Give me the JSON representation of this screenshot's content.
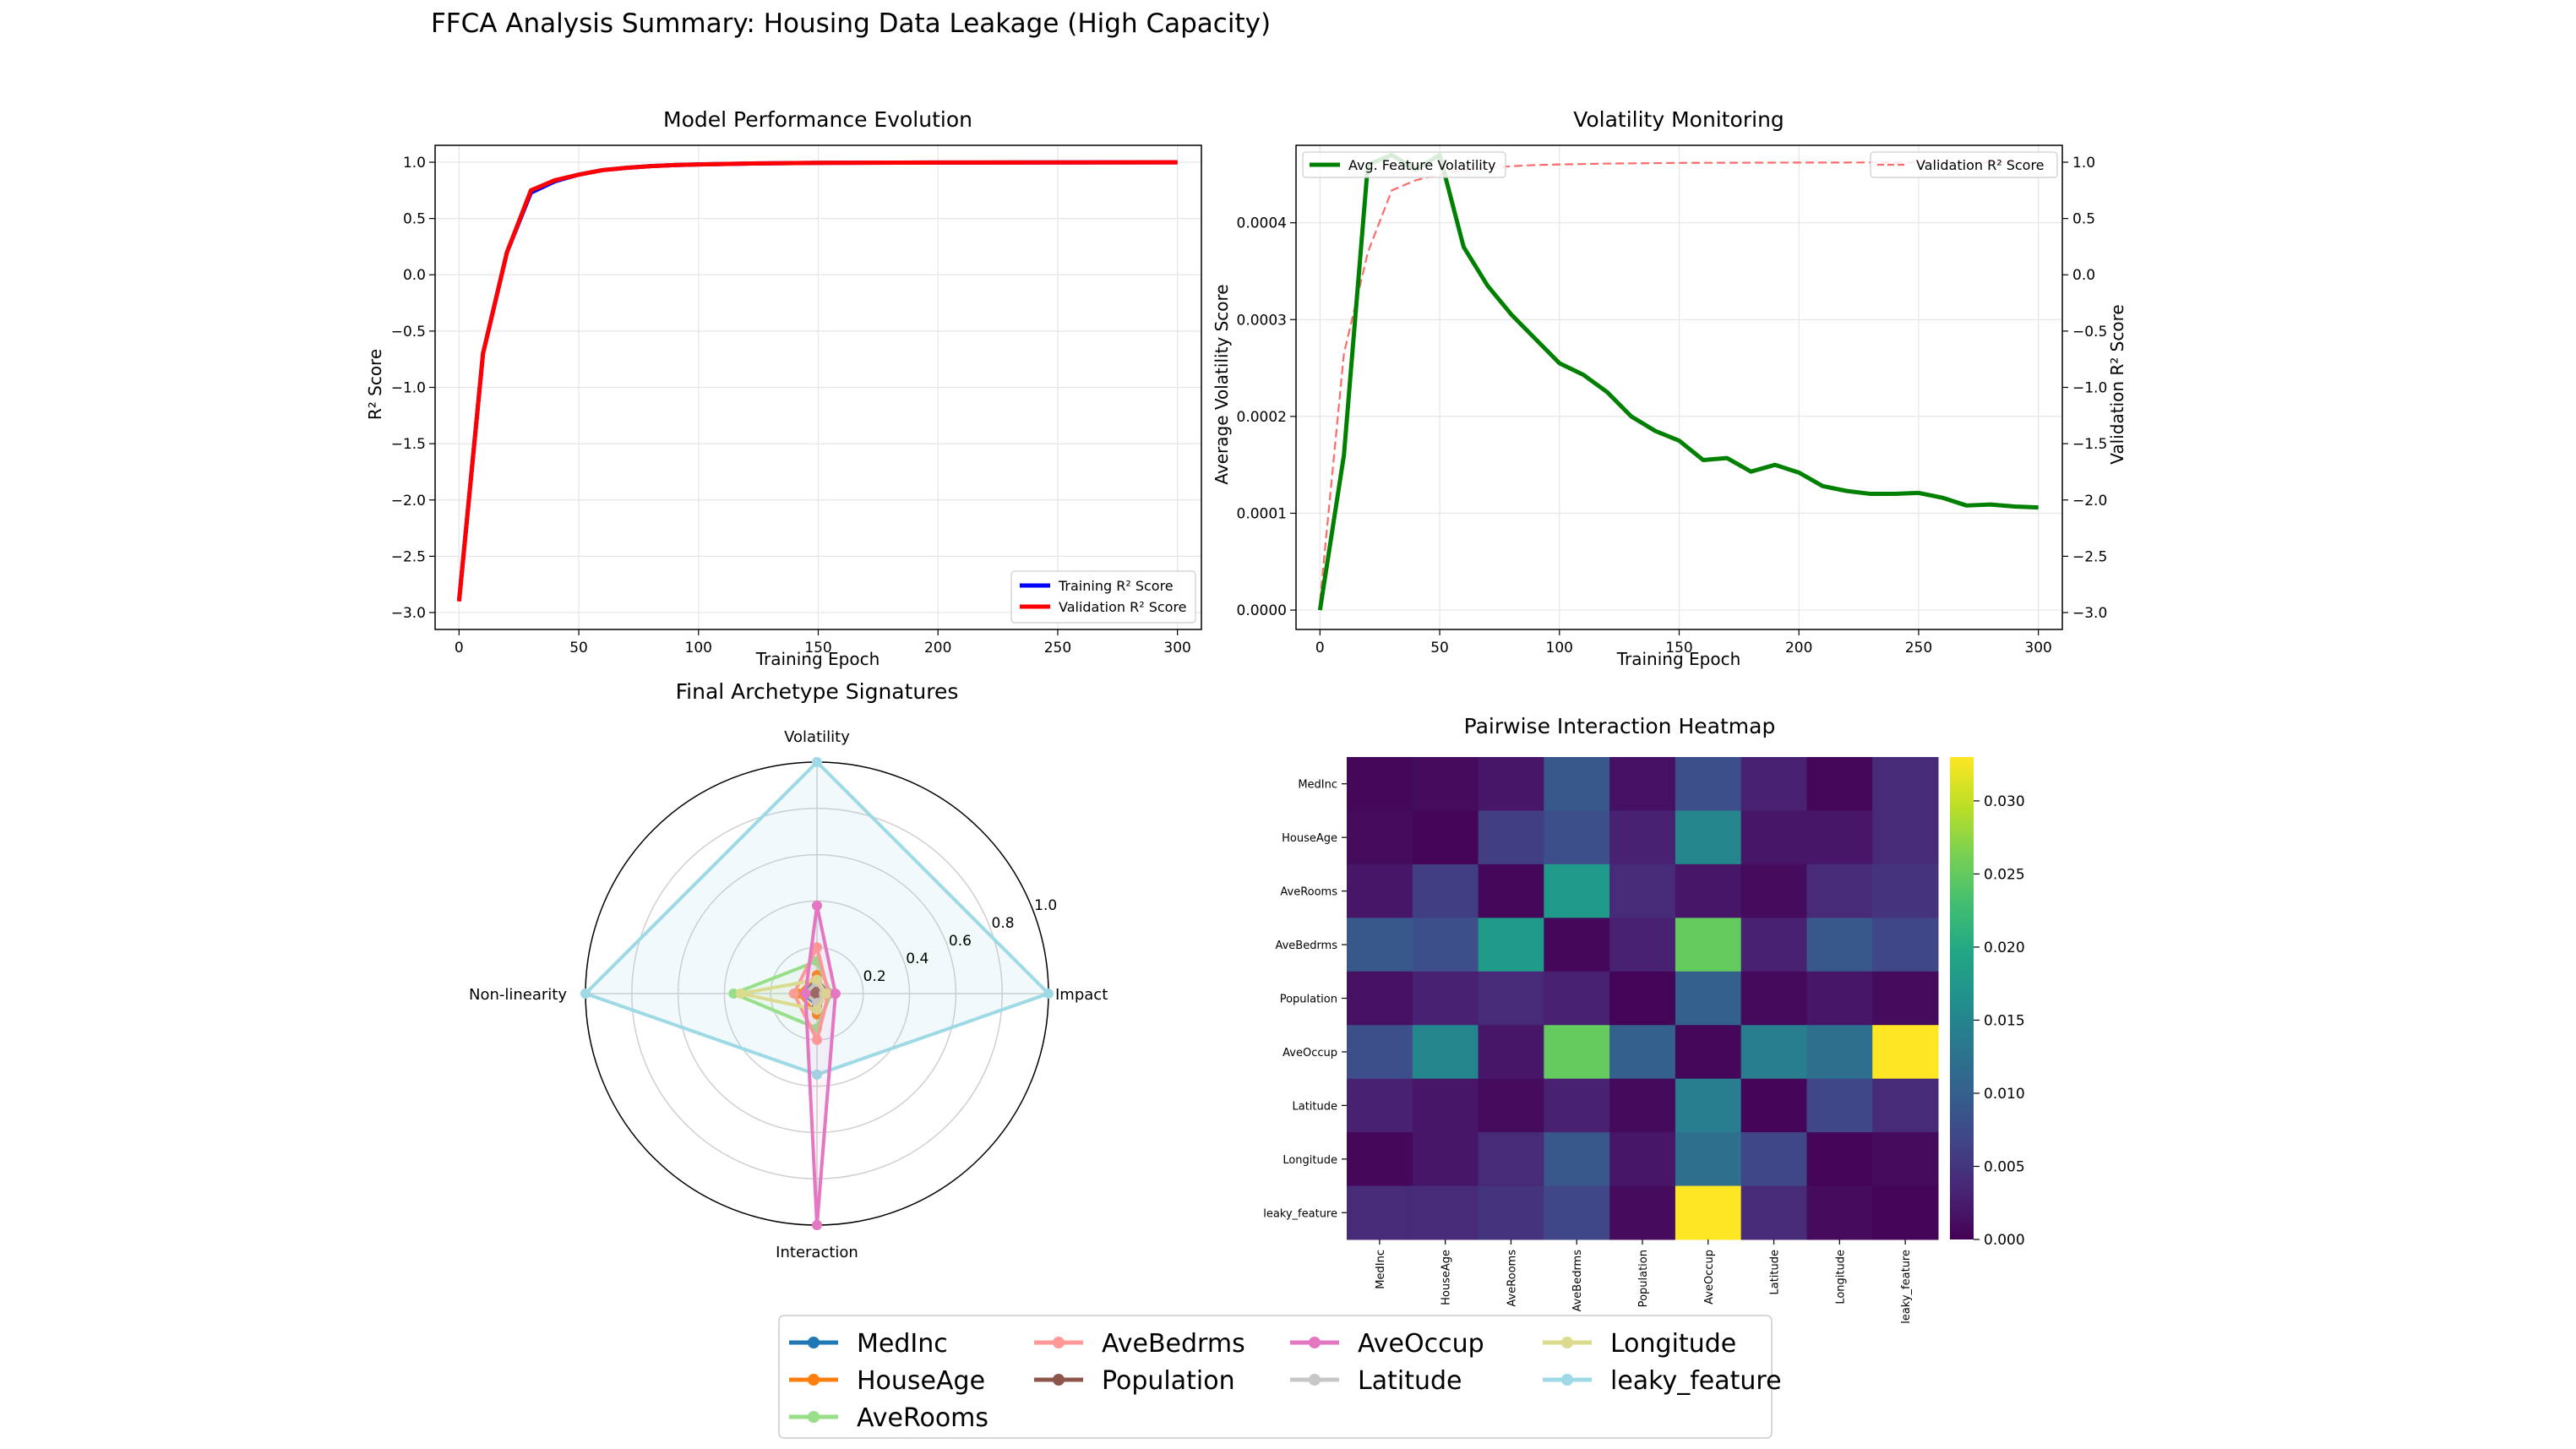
{
  "figure_title": "FFCA Analysis Summary: Housing Data Leakage (High Capacity)",
  "colors": {
    "train": "#0000ff",
    "val": "#ff0000",
    "vol": "#008000",
    "val_dash": "#ff6b6b",
    "grid": "#e6e6e6",
    "radar_fill": "#add8e6",
    "features": {
      "MedInc": "#1f77b4",
      "HouseAge": "#ff7f0e",
      "AveRooms": "#98df8a",
      "AveBedrms": "#ff9896",
      "Population": "#8c564b",
      "AveOccup": "#e377c2",
      "Latitude": "#c7c7c7",
      "Longitude": "#dbdb8d",
      "leaky_feature": "#9edae5"
    }
  },
  "chart_data": [
    {
      "id": "perf",
      "type": "line",
      "title": "Model Performance Evolution",
      "xlabel": "Training Epoch",
      "ylabel": "R² Score",
      "xlim": [
        -10,
        310
      ],
      "ylim": [
        -3.15,
        1.15
      ],
      "xticks": [
        0,
        50,
        100,
        150,
        200,
        250,
        300
      ],
      "yticks": [
        -3.0,
        -2.5,
        -2.0,
        -1.5,
        -1.0,
        -0.5,
        0.0,
        0.5,
        1.0
      ],
      "legend_loc": "lower right",
      "x": [
        0,
        10,
        20,
        30,
        40,
        50,
        60,
        70,
        80,
        90,
        100,
        120,
        150,
        200,
        250,
        300
      ],
      "series": [
        {
          "name": "Training R² Score",
          "color_key": "train",
          "values": [
            -2.9,
            -0.7,
            0.2,
            0.73,
            0.83,
            0.89,
            0.93,
            0.95,
            0.965,
            0.975,
            0.98,
            0.988,
            0.994,
            0.997,
            0.998,
            0.999
          ]
        },
        {
          "name": "Validation R² Score",
          "color_key": "val",
          "values": [
            -2.9,
            -0.7,
            0.2,
            0.75,
            0.84,
            0.89,
            0.93,
            0.95,
            0.965,
            0.975,
            0.98,
            0.988,
            0.994,
            0.997,
            0.998,
            0.999
          ]
        }
      ]
    },
    {
      "id": "vol",
      "type": "line",
      "title": "Volatility Monitoring",
      "xlabel": "Training Epoch",
      "ylabel": "Average Volatility Score",
      "ylabel_right": "Validation R² Score",
      "xlim": [
        -10,
        310
      ],
      "ylim": [
        -2e-05,
        0.00048
      ],
      "ylim_right": [
        -3.15,
        1.15
      ],
      "xticks": [
        0,
        50,
        100,
        150,
        200,
        250,
        300
      ],
      "yticks": [
        0.0,
        0.0001,
        0.0002,
        0.0003,
        0.0004
      ],
      "ytick_labels": [
        "0.0000",
        "0.0001",
        "0.0002",
        "0.0003",
        "0.0004"
      ],
      "yticks_right": [
        -3.0,
        -2.5,
        -2.0,
        -1.5,
        -1.0,
        -0.5,
        0.0,
        0.5,
        1.0
      ],
      "legend_left": "Avg. Feature Volatility",
      "legend_right": "Validation R² Score",
      "x": [
        0,
        10,
        20,
        30,
        40,
        50,
        60,
        70,
        80,
        90,
        100,
        110,
        120,
        130,
        140,
        150,
        160,
        170,
        180,
        190,
        200,
        210,
        220,
        230,
        240,
        250,
        260,
        270,
        280,
        290,
        300
      ],
      "volatility": [
        0.0,
        0.00016,
        0.00046,
        0.00047,
        0.000455,
        0.00047,
        0.000375,
        0.000335,
        0.000305,
        0.00028,
        0.000255,
        0.000243,
        0.000225,
        0.0002,
        0.000185,
        0.000175,
        0.000155,
        0.000157,
        0.000143,
        0.00015,
        0.000142,
        0.000128,
        0.000123,
        0.00012,
        0.00012,
        0.000121,
        0.000116,
        0.000108,
        0.000109,
        0.000107,
        0.000106
      ],
      "val_x": [
        0,
        10,
        20,
        30,
        40,
        50,
        60,
        70,
        80,
        90,
        100,
        120,
        150,
        200,
        250,
        300
      ],
      "val_r2": [
        -2.9,
        -0.7,
        0.2,
        0.75,
        0.84,
        0.89,
        0.93,
        0.95,
        0.965,
        0.975,
        0.98,
        0.988,
        0.994,
        0.997,
        0.998,
        0.999
      ]
    },
    {
      "id": "radar",
      "type": "radar",
      "title": "Final Archetype Signatures",
      "axes": [
        "Impact",
        "Volatility",
        "Non-linearity",
        "Interaction"
      ],
      "rticks": [
        0.2,
        0.4,
        0.6,
        0.8,
        1.0
      ],
      "rtick_labels": [
        "0.2",
        "0.4",
        "0.6",
        "0.8",
        "1.0"
      ],
      "series": [
        {
          "name": "MedInc",
          "values": [
            0.05,
            0.06,
            0.06,
            0.05
          ]
        },
        {
          "name": "HouseAge",
          "values": [
            0.03,
            0.08,
            0.08,
            0.09
          ]
        },
        {
          "name": "AveRooms",
          "values": [
            0.06,
            0.14,
            0.36,
            0.15
          ]
        },
        {
          "name": "AveBedrms",
          "values": [
            0.05,
            0.2,
            0.1,
            0.2
          ]
        },
        {
          "name": "Population",
          "values": [
            0.02,
            0.03,
            0.02,
            0.03
          ]
        },
        {
          "name": "AveOccup",
          "values": [
            0.08,
            0.38,
            0.05,
            1.0
          ]
        },
        {
          "name": "Latitude",
          "values": [
            0.03,
            0.05,
            0.05,
            0.04
          ]
        },
        {
          "name": "Longitude",
          "values": [
            0.04,
            0.06,
            0.33,
            0.07
          ]
        },
        {
          "name": "leaky_feature",
          "values": [
            1.0,
            1.0,
            1.0,
            0.35
          ]
        }
      ]
    },
    {
      "id": "heat",
      "type": "heatmap",
      "title": "Pairwise Interaction Heatmap",
      "labels": [
        "MedInc",
        "HouseAge",
        "AveRooms",
        "AveBedrms",
        "Population",
        "AveOccup",
        "Latitude",
        "Longitude",
        "leaky_feature"
      ],
      "vmin": 0.0,
      "vmax": 0.033,
      "colorbar_ticks": [
        0.0,
        0.005,
        0.01,
        0.015,
        0.02,
        0.025,
        0.03
      ],
      "colorbar_labels": [
        "0.000",
        "0.005",
        "0.010",
        "0.015",
        "0.020",
        "0.025",
        "0.030"
      ],
      "matrix": [
        [
          0.0005,
          0.001,
          0.002,
          0.009,
          0.0015,
          0.008,
          0.003,
          0.0005,
          0.004
        ],
        [
          0.001,
          0.0003,
          0.006,
          0.008,
          0.003,
          0.015,
          0.002,
          0.002,
          0.004
        ],
        [
          0.002,
          0.006,
          0.0005,
          0.018,
          0.004,
          0.002,
          0.001,
          0.004,
          0.005
        ],
        [
          0.009,
          0.008,
          0.018,
          0.0005,
          0.003,
          0.025,
          0.003,
          0.009,
          0.007
        ],
        [
          0.0015,
          0.003,
          0.004,
          0.003,
          0.0003,
          0.01,
          0.0008,
          0.002,
          0.001
        ],
        [
          0.008,
          0.015,
          0.002,
          0.025,
          0.01,
          0.0005,
          0.014,
          0.012,
          0.033
        ],
        [
          0.003,
          0.002,
          0.001,
          0.003,
          0.0008,
          0.014,
          0.0004,
          0.007,
          0.004
        ],
        [
          0.0005,
          0.002,
          0.004,
          0.009,
          0.002,
          0.012,
          0.007,
          0.0004,
          0.001
        ],
        [
          0.004,
          0.004,
          0.005,
          0.007,
          0.001,
          0.033,
          0.004,
          0.001,
          0.0003
        ]
      ]
    }
  ],
  "legend": [
    "MedInc",
    "HouseAge",
    "AveRooms",
    "AveBedrms",
    "Population",
    "AveOccup",
    "Latitude",
    "Longitude",
    "leaky_feature"
  ]
}
